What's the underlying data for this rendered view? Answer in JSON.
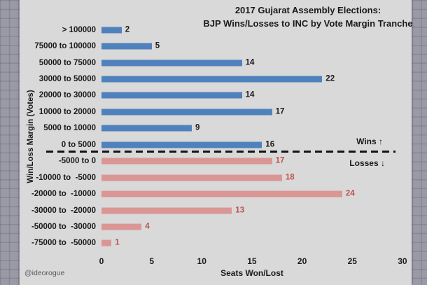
{
  "watermark": "@ideorogue",
  "chart_data": {
    "type": "bar",
    "orientation": "horizontal",
    "title_line1": "2017 Gujarat Assembly Elections:",
    "title_line2": "BJP Wins/Losses to INC by Vote Margin Tranche",
    "xlabel": "Seats Won/Lost",
    "ylabel": "Win/Loss Margin (Votes)",
    "xlim": [
      0,
      30
    ],
    "xticks": [
      0,
      5,
      10,
      15,
      20,
      25,
      30
    ],
    "grid": "off",
    "legend": "none",
    "categories": [
      "> 100000",
      "75000 to 100000",
      "50000 to 75000",
      "30000 to 50000",
      "20000 to 30000",
      "10000 to 20000",
      "5000 to 10000",
      "0 to 5000",
      "-5000 to 0",
      "-10000 to  -5000",
      "-20000 to  -10000",
      "-30000 to  -20000",
      "-50000 to  -30000",
      "-75000 to  -50000"
    ],
    "rows": [
      {
        "label": "> 100000",
        "value": 2,
        "group": "win"
      },
      {
        "label": "75000 to 100000",
        "value": 5,
        "group": "win"
      },
      {
        "label": "50000 to 75000",
        "value": 14,
        "group": "win"
      },
      {
        "label": "30000 to 50000",
        "value": 22,
        "group": "win"
      },
      {
        "label": "20000 to 30000",
        "value": 14,
        "group": "win"
      },
      {
        "label": "10000 to 20000",
        "value": 17,
        "group": "win"
      },
      {
        "label": "5000 to 10000",
        "value": 9,
        "group": "win"
      },
      {
        "label": "0 to 5000",
        "value": 16,
        "group": "win"
      },
      {
        "label": "-5000 to 0",
        "value": 17,
        "group": "loss"
      },
      {
        "label": "-10000 to  -5000",
        "value": 18,
        "group": "loss"
      },
      {
        "label": "-20000 to  -10000",
        "value": 24,
        "group": "loss"
      },
      {
        "label": "-30000 to  -20000",
        "value": 13,
        "group": "loss"
      },
      {
        "label": "-50000 to  -30000",
        "value": 4,
        "group": "loss"
      },
      {
        "label": "-75000 to  -50000",
        "value": 1,
        "group": "loss"
      }
    ],
    "annotations": {
      "wins": "Wins ↑",
      "losses": "Losses ↓"
    },
    "colors": {
      "win_bar": "#4f81bd",
      "loss_bar": "#d99694",
      "win_value": "#1a1a1a",
      "loss_value": "#c0504d",
      "text": "#1a1a1a",
      "panel_bg": "#d9d9d9",
      "outer_bg": "#9a9aa6",
      "separator": "#141414",
      "watermark_color": "#57575f"
    }
  }
}
